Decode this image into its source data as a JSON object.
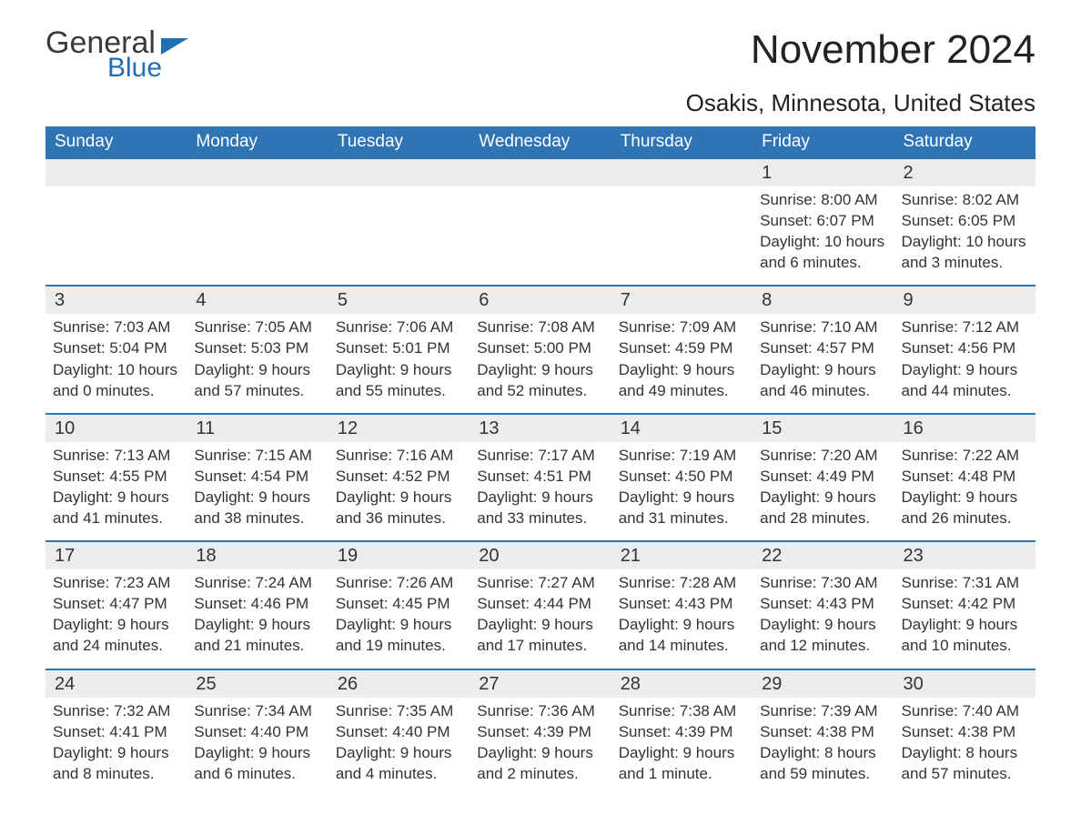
{
  "brand": {
    "word1": "General",
    "word2": "Blue"
  },
  "colors": {
    "header_bg": "#2f74b5",
    "header_text": "#ffffff",
    "row_border": "#2f74b5",
    "daybar_bg": "#ececec",
    "body_text": "#333333",
    "logo_blue": "#1f6fb2"
  },
  "title": "November 2024",
  "location": "Osakis, Minnesota, United States",
  "weekdays": [
    "Sunday",
    "Monday",
    "Tuesday",
    "Wednesday",
    "Thursday",
    "Friday",
    "Saturday"
  ],
  "weeks": [
    [
      {
        "blank": true
      },
      {
        "blank": true
      },
      {
        "blank": true
      },
      {
        "blank": true
      },
      {
        "blank": true
      },
      {
        "day": "1",
        "sunrise": "Sunrise: 8:00 AM",
        "sunset": "Sunset: 6:07 PM",
        "dl1": "Daylight: 10 hours",
        "dl2": "and 6 minutes."
      },
      {
        "day": "2",
        "sunrise": "Sunrise: 8:02 AM",
        "sunset": "Sunset: 6:05 PM",
        "dl1": "Daylight: 10 hours",
        "dl2": "and 3 minutes."
      }
    ],
    [
      {
        "day": "3",
        "sunrise": "Sunrise: 7:03 AM",
        "sunset": "Sunset: 5:04 PM",
        "dl1": "Daylight: 10 hours",
        "dl2": "and 0 minutes."
      },
      {
        "day": "4",
        "sunrise": "Sunrise: 7:05 AM",
        "sunset": "Sunset: 5:03 PM",
        "dl1": "Daylight: 9 hours",
        "dl2": "and 57 minutes."
      },
      {
        "day": "5",
        "sunrise": "Sunrise: 7:06 AM",
        "sunset": "Sunset: 5:01 PM",
        "dl1": "Daylight: 9 hours",
        "dl2": "and 55 minutes."
      },
      {
        "day": "6",
        "sunrise": "Sunrise: 7:08 AM",
        "sunset": "Sunset: 5:00 PM",
        "dl1": "Daylight: 9 hours",
        "dl2": "and 52 minutes."
      },
      {
        "day": "7",
        "sunrise": "Sunrise: 7:09 AM",
        "sunset": "Sunset: 4:59 PM",
        "dl1": "Daylight: 9 hours",
        "dl2": "and 49 minutes."
      },
      {
        "day": "8",
        "sunrise": "Sunrise: 7:10 AM",
        "sunset": "Sunset: 4:57 PM",
        "dl1": "Daylight: 9 hours",
        "dl2": "and 46 minutes."
      },
      {
        "day": "9",
        "sunrise": "Sunrise: 7:12 AM",
        "sunset": "Sunset: 4:56 PM",
        "dl1": "Daylight: 9 hours",
        "dl2": "and 44 minutes."
      }
    ],
    [
      {
        "day": "10",
        "sunrise": "Sunrise: 7:13 AM",
        "sunset": "Sunset: 4:55 PM",
        "dl1": "Daylight: 9 hours",
        "dl2": "and 41 minutes."
      },
      {
        "day": "11",
        "sunrise": "Sunrise: 7:15 AM",
        "sunset": "Sunset: 4:54 PM",
        "dl1": "Daylight: 9 hours",
        "dl2": "and 38 minutes."
      },
      {
        "day": "12",
        "sunrise": "Sunrise: 7:16 AM",
        "sunset": "Sunset: 4:52 PM",
        "dl1": "Daylight: 9 hours",
        "dl2": "and 36 minutes."
      },
      {
        "day": "13",
        "sunrise": "Sunrise: 7:17 AM",
        "sunset": "Sunset: 4:51 PM",
        "dl1": "Daylight: 9 hours",
        "dl2": "and 33 minutes."
      },
      {
        "day": "14",
        "sunrise": "Sunrise: 7:19 AM",
        "sunset": "Sunset: 4:50 PM",
        "dl1": "Daylight: 9 hours",
        "dl2": "and 31 minutes."
      },
      {
        "day": "15",
        "sunrise": "Sunrise: 7:20 AM",
        "sunset": "Sunset: 4:49 PM",
        "dl1": "Daylight: 9 hours",
        "dl2": "and 28 minutes."
      },
      {
        "day": "16",
        "sunrise": "Sunrise: 7:22 AM",
        "sunset": "Sunset: 4:48 PM",
        "dl1": "Daylight: 9 hours",
        "dl2": "and 26 minutes."
      }
    ],
    [
      {
        "day": "17",
        "sunrise": "Sunrise: 7:23 AM",
        "sunset": "Sunset: 4:47 PM",
        "dl1": "Daylight: 9 hours",
        "dl2": "and 24 minutes."
      },
      {
        "day": "18",
        "sunrise": "Sunrise: 7:24 AM",
        "sunset": "Sunset: 4:46 PM",
        "dl1": "Daylight: 9 hours",
        "dl2": "and 21 minutes."
      },
      {
        "day": "19",
        "sunrise": "Sunrise: 7:26 AM",
        "sunset": "Sunset: 4:45 PM",
        "dl1": "Daylight: 9 hours",
        "dl2": "and 19 minutes."
      },
      {
        "day": "20",
        "sunrise": "Sunrise: 7:27 AM",
        "sunset": "Sunset: 4:44 PM",
        "dl1": "Daylight: 9 hours",
        "dl2": "and 17 minutes."
      },
      {
        "day": "21",
        "sunrise": "Sunrise: 7:28 AM",
        "sunset": "Sunset: 4:43 PM",
        "dl1": "Daylight: 9 hours",
        "dl2": "and 14 minutes."
      },
      {
        "day": "22",
        "sunrise": "Sunrise: 7:30 AM",
        "sunset": "Sunset: 4:43 PM",
        "dl1": "Daylight: 9 hours",
        "dl2": "and 12 minutes."
      },
      {
        "day": "23",
        "sunrise": "Sunrise: 7:31 AM",
        "sunset": "Sunset: 4:42 PM",
        "dl1": "Daylight: 9 hours",
        "dl2": "and 10 minutes."
      }
    ],
    [
      {
        "day": "24",
        "sunrise": "Sunrise: 7:32 AM",
        "sunset": "Sunset: 4:41 PM",
        "dl1": "Daylight: 9 hours",
        "dl2": "and 8 minutes."
      },
      {
        "day": "25",
        "sunrise": "Sunrise: 7:34 AM",
        "sunset": "Sunset: 4:40 PM",
        "dl1": "Daylight: 9 hours",
        "dl2": "and 6 minutes."
      },
      {
        "day": "26",
        "sunrise": "Sunrise: 7:35 AM",
        "sunset": "Sunset: 4:40 PM",
        "dl1": "Daylight: 9 hours",
        "dl2": "and 4 minutes."
      },
      {
        "day": "27",
        "sunrise": "Sunrise: 7:36 AM",
        "sunset": "Sunset: 4:39 PM",
        "dl1": "Daylight: 9 hours",
        "dl2": "and 2 minutes."
      },
      {
        "day": "28",
        "sunrise": "Sunrise: 7:38 AM",
        "sunset": "Sunset: 4:39 PM",
        "dl1": "Daylight: 9 hours",
        "dl2": "and 1 minute."
      },
      {
        "day": "29",
        "sunrise": "Sunrise: 7:39 AM",
        "sunset": "Sunset: 4:38 PM",
        "dl1": "Daylight: 8 hours",
        "dl2": "and 59 minutes."
      },
      {
        "day": "30",
        "sunrise": "Sunrise: 7:40 AM",
        "sunset": "Sunset: 4:38 PM",
        "dl1": "Daylight: 8 hours",
        "dl2": "and 57 minutes."
      }
    ]
  ]
}
